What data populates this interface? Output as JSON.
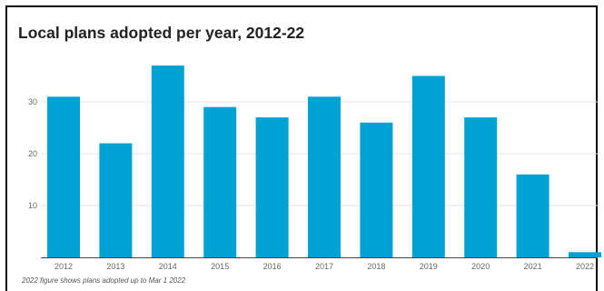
{
  "chart_data": {
    "type": "bar",
    "title": "Local plans adopted per year, 2012-22",
    "xlabel": "",
    "ylabel": "",
    "categories": [
      "2012",
      "2013",
      "2014",
      "2015",
      "2016",
      "2017",
      "2018",
      "2019",
      "2020",
      "2021",
      "2022"
    ],
    "values": [
      31,
      22,
      37,
      29,
      27,
      31,
      26,
      35,
      27,
      16,
      1
    ],
    "ylim": [
      0,
      40
    ],
    "yticks": [
      "10",
      "20",
      "30"
    ],
    "grid": true,
    "bar_color": "#00a2d3",
    "note": "2022 figure shows plans adopted up to Mar 1 2022"
  }
}
